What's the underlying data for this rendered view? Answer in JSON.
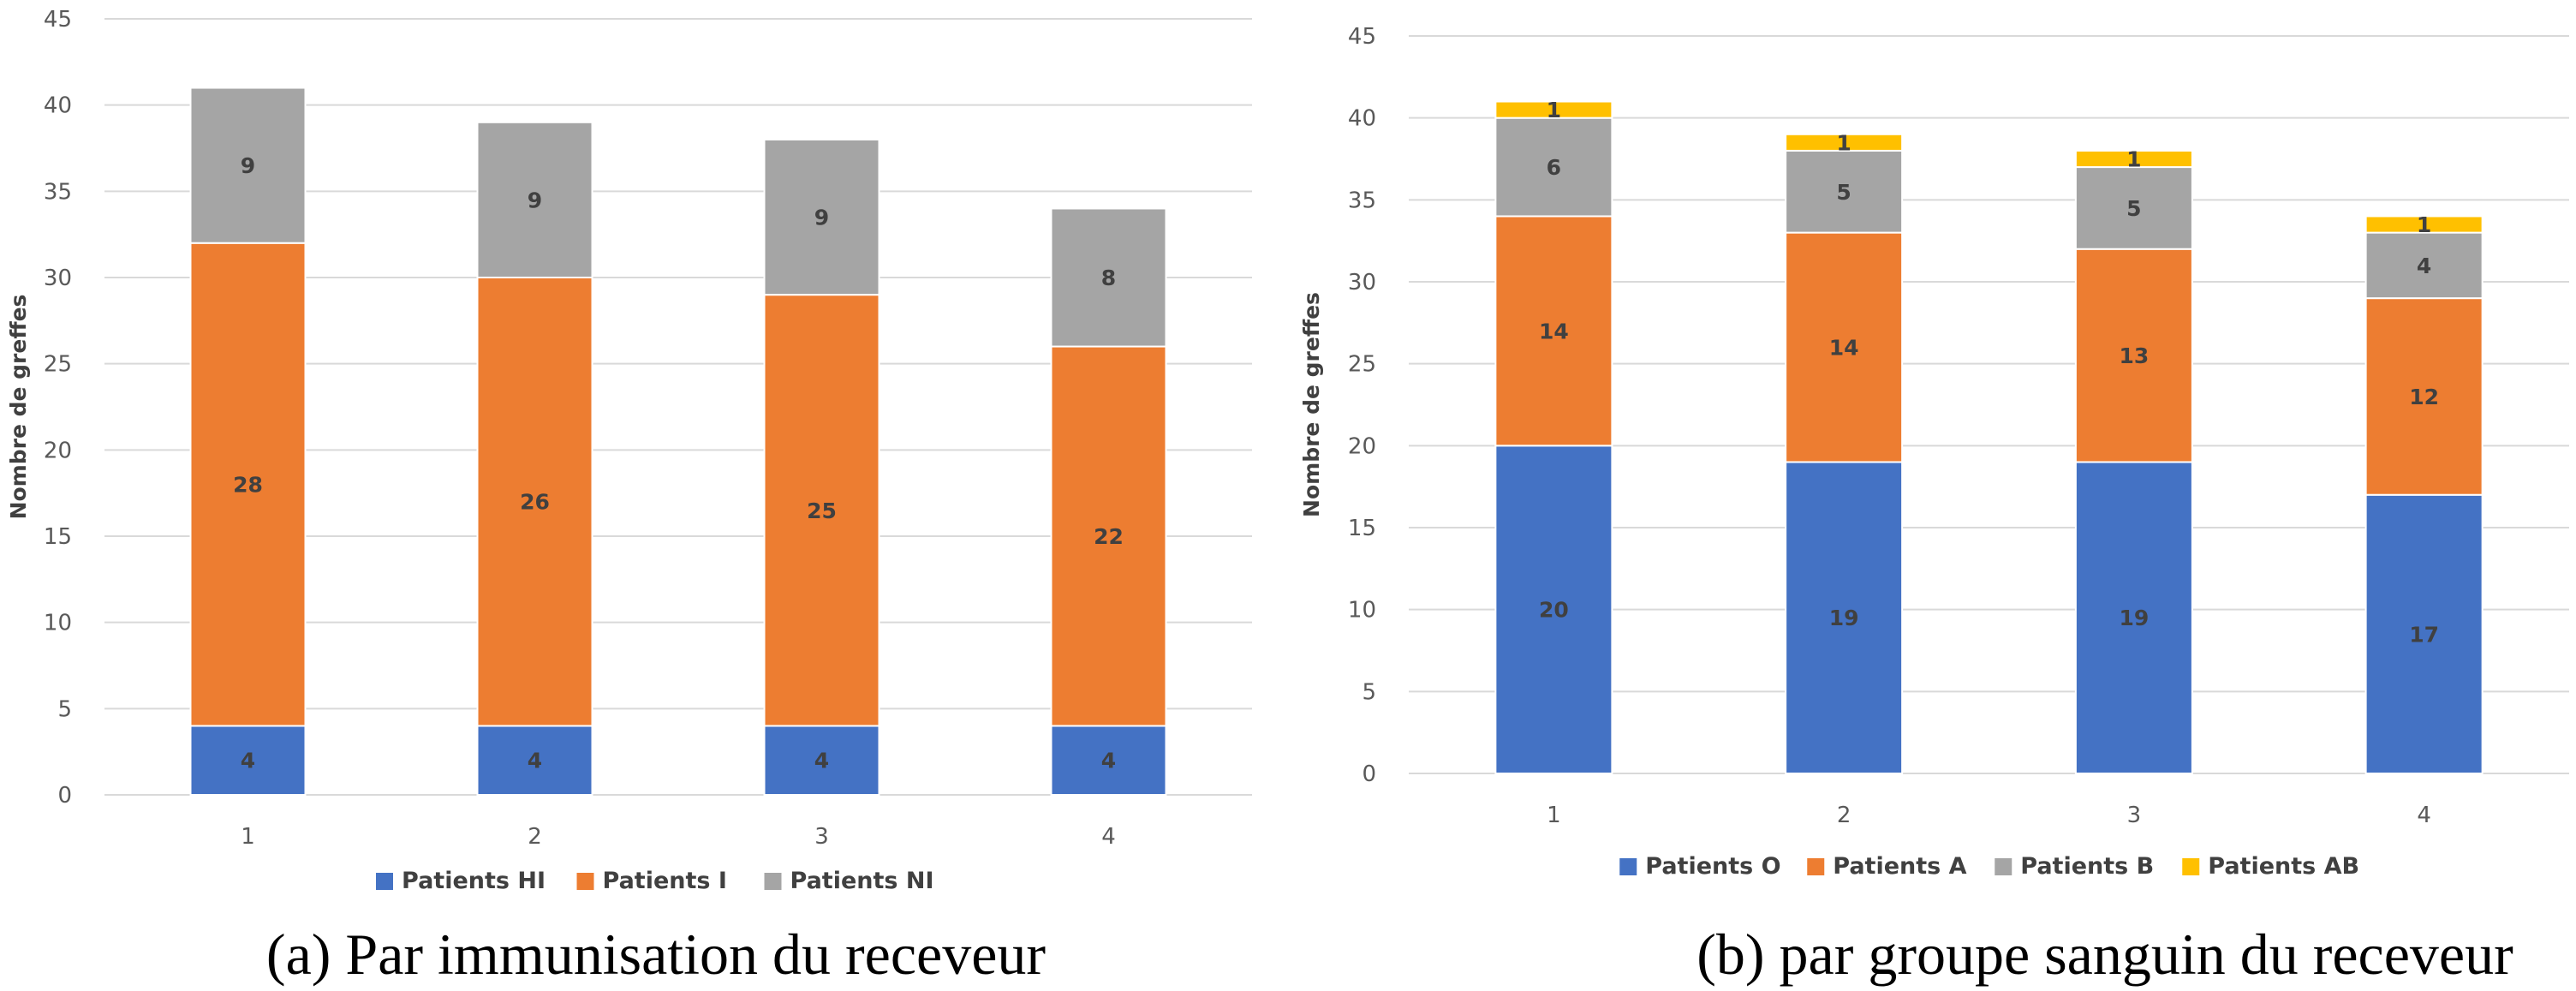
{
  "chart_data": [
    {
      "type": "bar",
      "stacked": true,
      "caption": "(a)  Par immunisation du receveur",
      "title": "",
      "xlabel": "",
      "ylabel": "Nombre de greffes",
      "ylim": [
        0,
        45
      ],
      "yticks": [
        0,
        5,
        10,
        15,
        20,
        25,
        30,
        35,
        40,
        45
      ],
      "grid": true,
      "legend_position": "bottom",
      "categories": [
        "1",
        "2",
        "3",
        "4"
      ],
      "series": [
        {
          "name": "Patients HI",
          "color": "#4472C4",
          "values": [
            4,
            4,
            4,
            4
          ]
        },
        {
          "name": "Patients I",
          "color": "#ED7D31",
          "values": [
            28,
            26,
            25,
            22
          ]
        },
        {
          "name": "Patients NI",
          "color": "#A5A5A5",
          "values": [
            9,
            9,
            9,
            8
          ]
        }
      ]
    },
    {
      "type": "bar",
      "stacked": true,
      "caption": "(b) par groupe sanguin du receveur",
      "title": "",
      "xlabel": "",
      "ylabel": "Nombre de greffes",
      "ylim": [
        0,
        45
      ],
      "yticks": [
        0,
        5,
        10,
        15,
        20,
        25,
        30,
        35,
        40,
        45
      ],
      "grid": true,
      "legend_position": "bottom",
      "categories": [
        "1",
        "2",
        "3",
        "4"
      ],
      "series": [
        {
          "name": "Patients O",
          "color": "#4472C4",
          "values": [
            20,
            19,
            19,
            17
          ]
        },
        {
          "name": "Patients A",
          "color": "#ED7D31",
          "values": [
            14,
            14,
            13,
            12
          ]
        },
        {
          "name": "Patients B",
          "color": "#A5A5A5",
          "values": [
            6,
            5,
            5,
            4
          ]
        },
        {
          "name": "Patients AB",
          "color": "#FFC000",
          "values": [
            1,
            1,
            1,
            1
          ]
        }
      ]
    }
  ]
}
